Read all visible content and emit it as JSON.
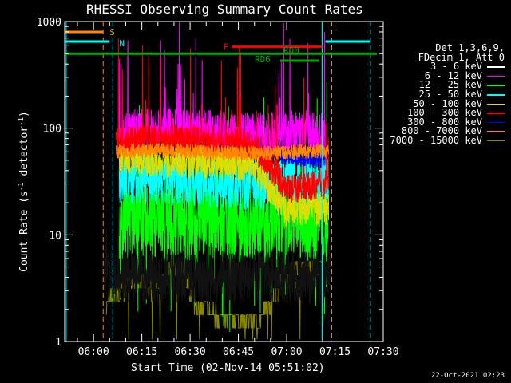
{
  "chart_data": {
    "type": "line",
    "title": "RHESSI Observing Summary Count Rates",
    "xlabel": "Start Time (02-Nov-14 05:51:02)",
    "ylabel": "Count Rate (s-1 detector-1)",
    "ylabel_parts": {
      "main": "Count Rate (s",
      "exp1": "-1",
      "mid": " detector",
      "exp2": "-1",
      "end": ")"
    },
    "y_scale": "log",
    "ylim": [
      1,
      1000
    ],
    "xlim": [
      "05:51:02",
      "07:30"
    ],
    "x_ticks": [
      "06:00",
      "06:15",
      "06:30",
      "06:45",
      "07:00",
      "07:15",
      "07:30"
    ],
    "y_ticks": [
      "1",
      "10",
      "100",
      "1000"
    ],
    "legend_header": [
      "Det 1,3,6,9,",
      "FDecim 1, Att 0"
    ],
    "legend_position": "right",
    "series": [
      {
        "name": "3 - 6 keV",
        "color": "#000000",
        "points": [
          [
            "06:03",
            2.2
          ],
          [
            "06:04",
            6.5
          ],
          [
            "06:06",
            4.0
          ],
          [
            "07:12",
            4.0
          ],
          [
            "07:14",
            6.0
          ]
        ]
      },
      {
        "name": "6 - 12 keV",
        "color": "#ff00ff",
        "points": [
          [
            "06:08",
            90
          ],
          [
            "06:20",
            95
          ],
          [
            "06:35",
            90
          ],
          [
            "06:50",
            85
          ],
          [
            "07:05",
            90
          ],
          [
            "07:12",
            85
          ]
        ]
      },
      {
        "name": "12 - 25 keV",
        "color": "#00ff00",
        "points": [
          [
            "06:08",
            15
          ],
          [
            "06:15",
            14
          ],
          [
            "06:30",
            14
          ],
          [
            "06:45",
            13
          ],
          [
            "07:00",
            14
          ],
          [
            "07:13",
            13
          ]
        ]
      },
      {
        "name": "25 - 50 keV",
        "color": "#00ffff",
        "points": [
          [
            "06:08",
            35
          ],
          [
            "06:20",
            34
          ],
          [
            "06:35",
            32
          ],
          [
            "06:50",
            30
          ],
          [
            "07:05",
            32
          ],
          [
            "07:13",
            34
          ]
        ]
      },
      {
        "name": "50 - 100 keV",
        "color": "#dddd00",
        "points": [
          [
            "06:08",
            55
          ],
          [
            "06:20",
            50
          ],
          [
            "06:35",
            48
          ],
          [
            "06:50",
            45
          ],
          [
            "07:00",
            17
          ],
          [
            "07:13",
            18
          ]
        ]
      },
      {
        "name": "100 - 300 keV",
        "color": "#ff0000",
        "points": [
          [
            "06:07",
            75
          ],
          [
            "06:20",
            80
          ],
          [
            "06:35",
            78
          ],
          [
            "06:50",
            70
          ],
          [
            "07:00",
            27
          ],
          [
            "07:13",
            30
          ]
        ]
      },
      {
        "name": "300 - 800 keV",
        "color": "#0000ff",
        "points": [
          [
            "06:58",
            55
          ],
          [
            "07:05",
            52
          ],
          [
            "07:12",
            50
          ]
        ]
      },
      {
        "name": "800 - 7000 keV",
        "color": "#ff8800",
        "points": [
          [
            "06:07",
            60
          ],
          [
            "06:20",
            63
          ],
          [
            "06:35",
            60
          ],
          [
            "06:50",
            58
          ],
          [
            "07:05",
            60
          ],
          [
            "07:13",
            62
          ]
        ]
      },
      {
        "name": "7000 - 15000 keV",
        "color": "#888800",
        "points": [
          [
            "06:04",
            2.3
          ],
          [
            "06:08",
            2.8
          ],
          [
            "06:12",
            4.2
          ],
          [
            "06:18",
            3.2
          ],
          [
            "06:27",
            4.8
          ],
          [
            "06:32",
            2.2
          ],
          [
            "06:40",
            1.6
          ],
          [
            "06:52",
            1.6
          ],
          [
            "06:58",
            3.5
          ],
          [
            "07:05",
            5.0
          ],
          [
            "07:13",
            5.0
          ]
        ]
      }
    ],
    "status_bars": [
      {
        "label": "S",
        "color": "#ff8800",
        "segments": [
          [
            "05:51:02",
            "06:03"
          ]
        ],
        "y_value": 800
      },
      {
        "label": "N",
        "color": "#00ffff",
        "segments": [
          [
            "05:51:02",
            "06:05"
          ],
          [
            "07:12",
            "07:26"
          ]
        ],
        "y_value": 650
      },
      {
        "label": "F",
        "color": "#ff0000",
        "segments": [
          [
            "06:43",
            "07:11"
          ]
        ],
        "y_value": 580
      },
      {
        "label": "RD0",
        "color": "#00aa00",
        "segments": [
          [
            "06:58",
            "07:10"
          ]
        ],
        "y_value": 430
      },
      {
        "label": "RD6",
        "color": "#00aa00",
        "segments": [
          [
            "05:51:02",
            "07:28"
          ]
        ],
        "y_value": 500
      }
    ],
    "vertical_markers": [
      {
        "time": "05:51:30",
        "color": "#00ffff",
        "style": "solid"
      },
      {
        "time": "06:03",
        "color": "#ff8800",
        "style": "dashed"
      },
      {
        "time": "06:06",
        "color": "#00ffff",
        "style": "dashed"
      },
      {
        "time": "07:11",
        "color": "#00ffff",
        "style": "solid"
      },
      {
        "time": "07:14",
        "color": "#ff8800",
        "style": "dashed"
      },
      {
        "time": "07:26",
        "color": "#00ffff",
        "style": "dashed"
      }
    ]
  },
  "footer": {
    "timestamp": "22-Oct-2021 02:23"
  }
}
